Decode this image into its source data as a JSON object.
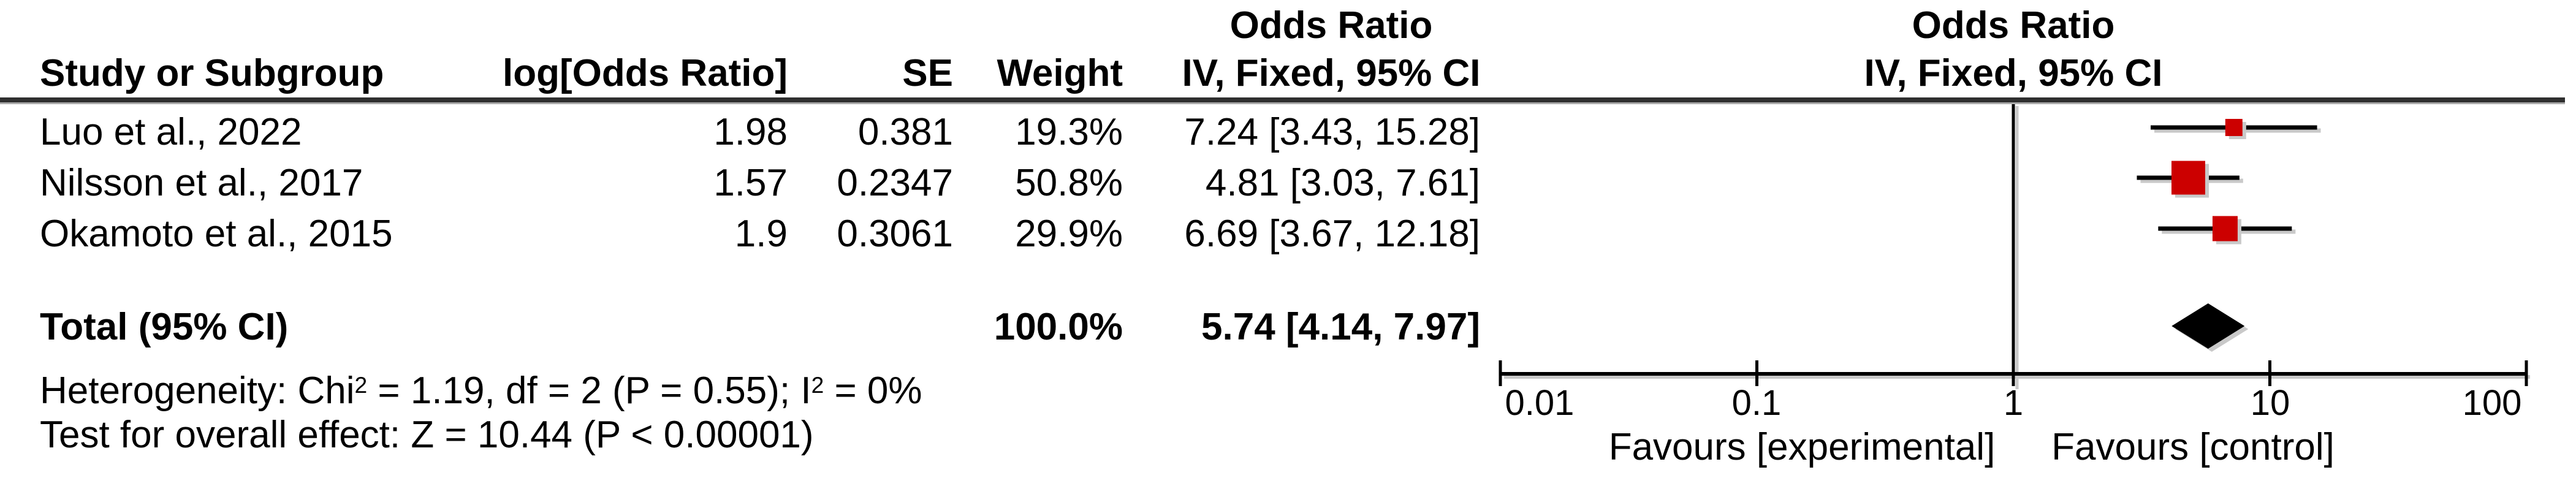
{
  "chart_data": {
    "type": "forest",
    "title_columns": {
      "study": "Study or Subgroup",
      "log_or": "log[Odds Ratio]",
      "se": "SE",
      "weight": "Weight",
      "or_header_table": "Odds Ratio",
      "ci_header_table": "IV, Fixed, 95% CI",
      "or_header_plot": "Odds Ratio",
      "ci_header_plot": "IV, Fixed, 95% CI"
    },
    "studies": [
      {
        "name": "Luo et al., 2022",
        "log_or": "1.98",
        "se": "0.381",
        "weight": "19.3%",
        "weight_pct": 19.3,
        "or_ci": "7.24 [3.43, 15.28]",
        "or": 7.24,
        "ci_low": 3.43,
        "ci_high": 15.28
      },
      {
        "name": "Nilsson et al., 2017",
        "log_or": "1.57",
        "se": "0.2347",
        "weight": "50.8%",
        "weight_pct": 50.8,
        "or_ci": "4.81 [3.03, 7.61]",
        "or": 4.81,
        "ci_low": 3.03,
        "ci_high": 7.61
      },
      {
        "name": "Okamoto et al., 2015",
        "log_or": "1.9",
        "se": "0.3061",
        "weight": "29.9%",
        "weight_pct": 29.9,
        "or_ci": "6.69 [3.67, 12.18]",
        "or": 6.69,
        "ci_low": 3.67,
        "ci_high": 12.18
      }
    ],
    "total": {
      "label": "Total (95% CI)",
      "weight": "100.0%",
      "or_ci": "5.74 [4.14, 7.97]",
      "or": 5.74,
      "ci_low": 4.14,
      "ci_high": 7.97
    },
    "heterogeneity": {
      "pre": "Heterogeneity: Chi",
      "sup1": "2",
      "mid": " = 1.19, df = 2 (P = 0.55); I",
      "sup2": "2",
      "post": " = 0%"
    },
    "overall_effect": "Test for overall effect: Z = 10.44 (P < 0.00001)",
    "axis": {
      "scale": "log",
      "min": 0.01,
      "max": 100,
      "tick_values": [
        0.01,
        0.1,
        1,
        10,
        100
      ],
      "tick_labels": [
        "0.01",
        "0.1",
        "1",
        "10",
        "100"
      ]
    },
    "favours_left": "Favours [experimental]",
    "favours_right": "Favours [control]",
    "colors": {
      "square": "#cc0000",
      "diamond": "#000000",
      "line": "#000000",
      "shadow": "#c9c9c9",
      "separator": "#2f2f2f"
    }
  }
}
